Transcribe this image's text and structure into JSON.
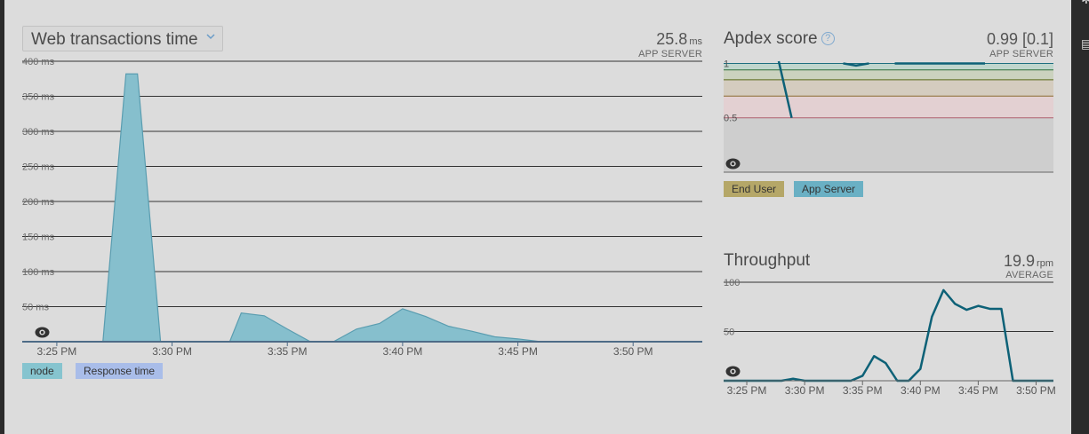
{
  "colors": {
    "panel_bg": "#dcdcdc",
    "area_fill": "#86bfcd",
    "area_stroke": "#5a9db0",
    "line": "#0d6177",
    "legend_node": "#86c4cf",
    "legend_response": "#a9bde9",
    "legend_end_user": "#b5a768",
    "legend_app_server": "#6ab0c4",
    "apdex_band_excellent": "#bfd6cd",
    "apdex_band_good": "#cbd2bf",
    "apdex_band_fair": "#d4ccbf",
    "apdex_band_poor": "#e3d0d2",
    "apdex_band_unacceptable": "#cecece",
    "link_blue": "#6a9cc8"
  },
  "icons": {
    "dropdown": "chevron-down-icon",
    "help": "help-circle-icon",
    "visibility": "eye-icon"
  },
  "web_transactions": {
    "selector_label": "Web transactions time",
    "summary_value": "25.8",
    "summary_unit": "ms",
    "summary_label": "APP SERVER",
    "legend": [
      "node",
      "Response time"
    ]
  },
  "apdex": {
    "title": "Apdex score",
    "summary_value": "0.99 [0.1]",
    "summary_label": "APP SERVER",
    "legend": [
      "End User",
      "App Server"
    ]
  },
  "throughput": {
    "title": "Throughput",
    "summary_value": "19.9",
    "summary_unit": "rpm",
    "summary_label": "AVERAGE"
  },
  "chart_data": [
    {
      "type": "area",
      "title": "Web transactions time",
      "ylabel": "",
      "xlabel": "",
      "y_unit": "ms",
      "ylim": [
        0,
        400
      ],
      "y_ticks": [
        "400 ms",
        "350 ms",
        "300 ms",
        "250 ms",
        "200 ms",
        "150 ms",
        "100 ms",
        "50 ms"
      ],
      "x_tick_labels": [
        "3:25 PM",
        "3:30 PM",
        "3:35 PM",
        "3:40 PM",
        "3:45 PM",
        "3:50 PM"
      ],
      "x_tick_minutes": [
        25,
        30,
        35,
        40,
        45,
        50
      ],
      "xlim_minutes": [
        23.5,
        53
      ],
      "grid": true,
      "legend_position": "bottom-left",
      "series": [
        {
          "name": "node",
          "x_minutes": [
            23.5,
            27.0,
            28.0,
            28.5,
            29.5,
            31.0,
            32.5,
            33.0,
            34.0,
            35.0,
            36.0,
            37.0,
            38.0,
            39.0,
            40.0,
            41.0,
            42.0,
            43.0,
            44.0,
            45.0,
            46.0,
            47.0,
            48.0,
            53.0
          ],
          "values": [
            0,
            0,
            382,
            382,
            0,
            0,
            0,
            41,
            37,
            18,
            0,
            0,
            18,
            26,
            47,
            36,
            22,
            15,
            7,
            4,
            0,
            0,
            0,
            0
          ]
        }
      ]
    },
    {
      "type": "line",
      "title": "Apdex score",
      "ylabel": "",
      "xlabel": "",
      "ylim": [
        0,
        1.02
      ],
      "y_ticks": [
        "1",
        "0.5"
      ],
      "grid": true,
      "legend_position": "bottom-left",
      "series": [
        {
          "name": "App Server",
          "x": [
            0,
            1,
            2,
            3,
            4,
            5,
            6,
            7,
            8,
            9,
            10,
            11,
            12,
            13,
            14,
            15,
            16
          ],
          "values": [
            1.02,
            0.5,
            null,
            null,
            null,
            1.0,
            0.98,
            1.0,
            null,
            1.0,
            1.0,
            1.0,
            1.0,
            1.0,
            1.0,
            1.0,
            1.0
          ]
        }
      ]
    },
    {
      "type": "line",
      "title": "Throughput",
      "ylabel": "",
      "xlabel": "",
      "y_unit": "rpm",
      "ylim": [
        0,
        100
      ],
      "y_ticks": [
        "100",
        "50"
      ],
      "x_tick_labels": [
        "3:25 PM",
        "3:30 PM",
        "3:35 PM",
        "3:40 PM",
        "3:45 PM",
        "3:50 PM"
      ],
      "x_tick_minutes": [
        25,
        30,
        35,
        40,
        45,
        50
      ],
      "xlim_minutes": [
        23,
        51.5
      ],
      "grid": true,
      "series": [
        {
          "name": "",
          "x_minutes": [
            23,
            28,
            29,
            30,
            31,
            32,
            33,
            34,
            35,
            36,
            37,
            38,
            39,
            40,
            41,
            42,
            43,
            44,
            45,
            46,
            47,
            48,
            51.5
          ],
          "values": [
            0,
            0,
            2,
            0,
            0,
            0,
            0,
            0,
            5,
            25,
            18,
            0,
            0,
            12,
            65,
            92,
            78,
            72,
            76,
            73,
            73,
            0,
            0
          ]
        }
      ]
    }
  ]
}
